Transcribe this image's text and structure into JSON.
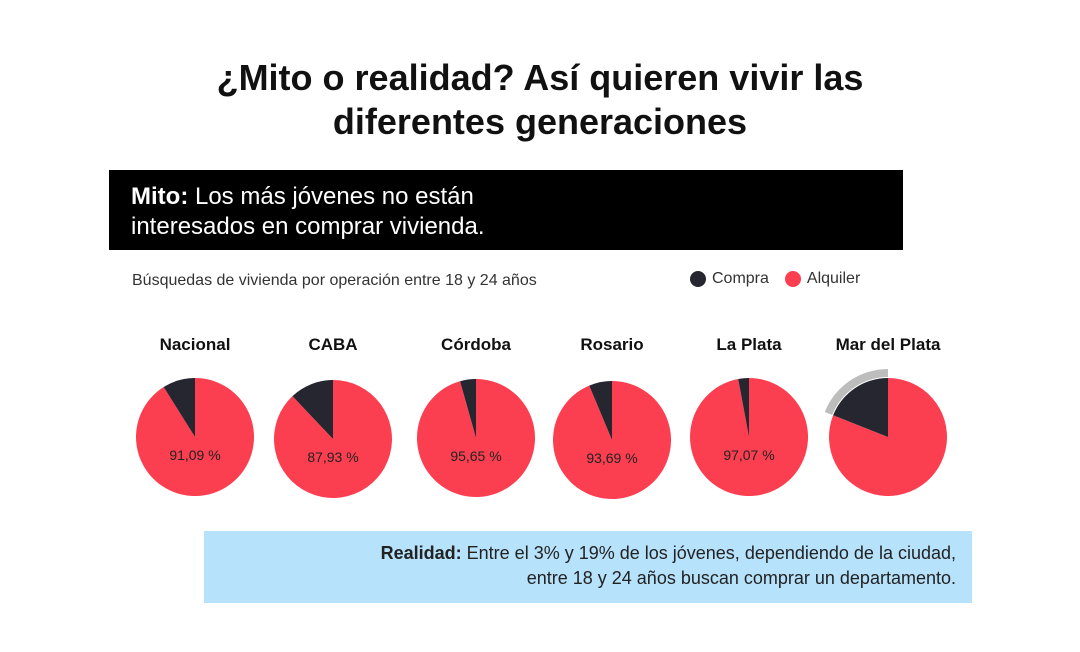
{
  "title_line1": "¿Mito o realidad? Así quieren vivir las",
  "title_line2": "diferentes generaciones",
  "myth": {
    "label": "Mito:",
    "line1": "Los más jóvenes no están",
    "line2": "interesados en comprar vivienda."
  },
  "reality": {
    "label": "Realidad:",
    "line1": "Entre el 3% y 19% de los jóvenes, dependiendo de la ciudad,",
    "line2": "entre 18 y 24 años buscan comprar un departamento."
  },
  "colors": {
    "compra": "#262630",
    "alquiler": "#fb3f51",
    "highlight": "#bdbdbd"
  },
  "chart_data": {
    "type": "pie",
    "title": "Búsquedas de vivienda por operación entre 18 y 24 años",
    "legend": [
      "Compra",
      "Alquiler"
    ],
    "legend_position": "top-right",
    "categories": [
      "Nacional",
      "CABA",
      "Córdoba",
      "Rosario",
      "La Plata",
      "Mar del Plata"
    ],
    "series": [
      {
        "name": "Alquiler",
        "values": [
          91.09,
          87.93,
          95.65,
          93.69,
          97.07,
          81
        ]
      },
      {
        "name": "Compra",
        "values": [
          8.91,
          12.07,
          4.35,
          6.31,
          2.93,
          19
        ]
      }
    ],
    "data_labels": [
      "91,09 %",
      "87,93 %",
      "95,65 %",
      "93,69 %",
      "97,07 %",
      ""
    ]
  }
}
